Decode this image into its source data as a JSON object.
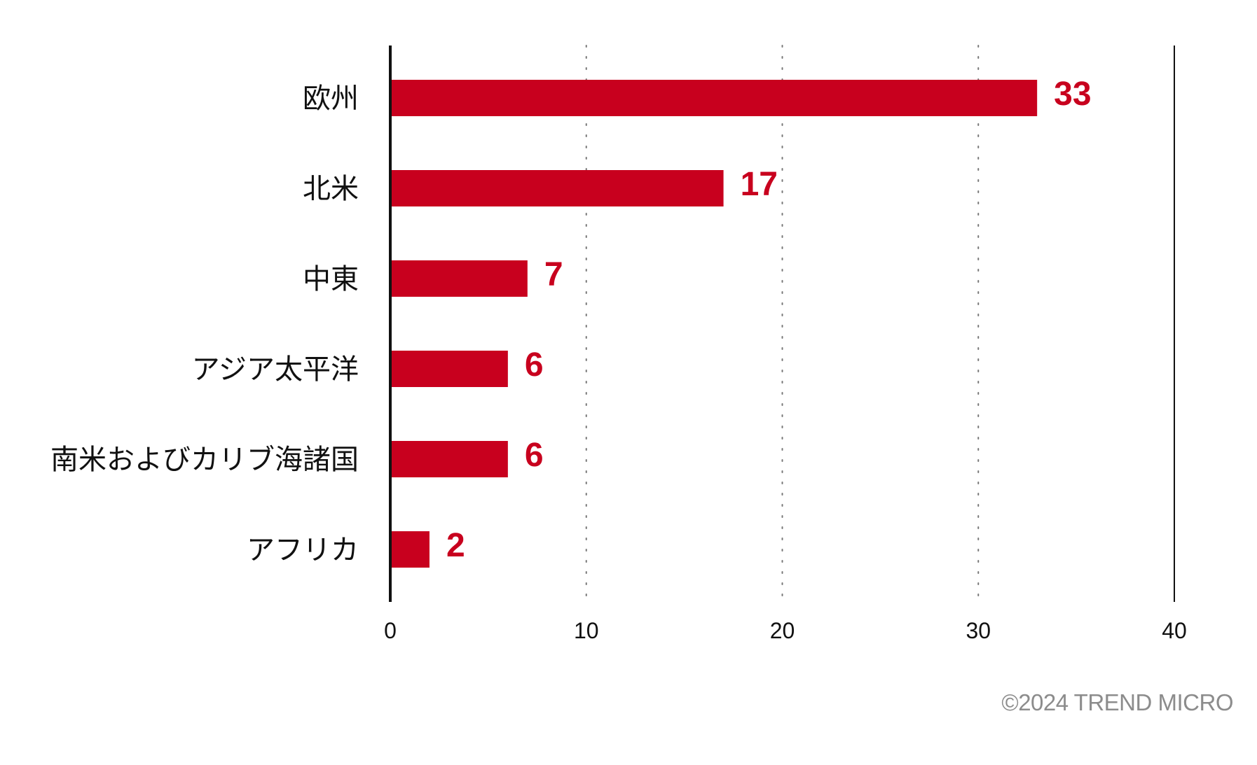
{
  "colors": {
    "bar": "#c8001e",
    "value_label": "#c8001e",
    "axis": "#111111",
    "grid": "#777777",
    "copyright": "#8c8c8c"
  },
  "chart_data": {
    "type": "bar",
    "orientation": "horizontal",
    "categories": [
      "欧州",
      "北米",
      "中東",
      "アジア太平洋",
      "南米およびカリブ海諸国",
      "アフリカ"
    ],
    "values": [
      33,
      17,
      7,
      6,
      6,
      2
    ],
    "title": "",
    "xlabel": "",
    "ylabel": "",
    "xlim": [
      0,
      40
    ],
    "xticks": [
      0,
      10,
      20,
      30,
      40
    ],
    "grid": "vertical dotted",
    "legend": "none"
  },
  "footer": {
    "copyright": "©2024 TREND MICRO"
  }
}
